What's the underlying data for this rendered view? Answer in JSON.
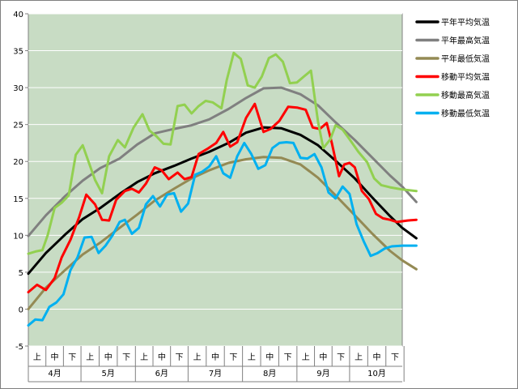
{
  "chart_data": {
    "type": "line",
    "title": "",
    "xlabel": "",
    "ylabel": "",
    "ylim": [
      -5,
      40
    ],
    "yticks": [
      -5,
      0,
      5,
      10,
      15,
      20,
      25,
      30,
      35,
      40
    ],
    "grid": true,
    "plot_background": "#c8dcc4",
    "legend_position": "right",
    "months": [
      "4月",
      "5月",
      "6月",
      "7月",
      "8月",
      "9月",
      "10月"
    ],
    "dekads": [
      "上",
      "中",
      "下"
    ],
    "x_units": "day index from April 1 (0 = 4月1日, 213 = 10月31日)",
    "series": [
      {
        "name": "平年平均気温",
        "color": "#000000",
        "width": 3,
        "points": [
          [
            0,
            4.8
          ],
          [
            10,
            7.6
          ],
          [
            21,
            10.1
          ],
          [
            31,
            12.2
          ],
          [
            41,
            13.7
          ],
          [
            52,
            15.6
          ],
          [
            62,
            17.2
          ],
          [
            72,
            18.4
          ],
          [
            83,
            19.4
          ],
          [
            93,
            20.4
          ],
          [
            103,
            21.3
          ],
          [
            114,
            22.5
          ],
          [
            124,
            23.9
          ],
          [
            134,
            24.6
          ],
          [
            144,
            24.5
          ],
          [
            155,
            23.6
          ],
          [
            165,
            22.2
          ],
          [
            175,
            20.1
          ],
          [
            186,
            17.7
          ],
          [
            196,
            15.1
          ],
          [
            206,
            12.6
          ],
          [
            213,
            11.0
          ],
          [
            221,
            9.6
          ]
        ]
      },
      {
        "name": "平年最高気温",
        "color": "#808080",
        "width": 3,
        "points": [
          [
            0,
            9.9
          ],
          [
            10,
            12.7
          ],
          [
            21,
            15.3
          ],
          [
            31,
            17.4
          ],
          [
            41,
            19.1
          ],
          [
            52,
            20.4
          ],
          [
            62,
            22.3
          ],
          [
            72,
            23.8
          ],
          [
            83,
            24.4
          ],
          [
            93,
            24.9
          ],
          [
            103,
            25.7
          ],
          [
            114,
            27.1
          ],
          [
            124,
            28.6
          ],
          [
            134,
            29.9
          ],
          [
            144,
            30.0
          ],
          [
            155,
            29.1
          ],
          [
            165,
            27.6
          ],
          [
            175,
            25.3
          ],
          [
            186,
            22.9
          ],
          [
            196,
            20.5
          ],
          [
            206,
            18.1
          ],
          [
            213,
            16.6
          ],
          [
            221,
            14.5
          ]
        ]
      },
      {
        "name": "平年最低気温",
        "color": "#948a54",
        "width": 3,
        "points": [
          [
            0,
            0.0
          ],
          [
            10,
            2.9
          ],
          [
            21,
            5.3
          ],
          [
            31,
            7.4
          ],
          [
            41,
            9.0
          ],
          [
            52,
            11.0
          ],
          [
            62,
            12.8
          ],
          [
            72,
            14.7
          ],
          [
            83,
            16.3
          ],
          [
            93,
            17.7
          ],
          [
            103,
            18.8
          ],
          [
            114,
            19.8
          ],
          [
            124,
            20.3
          ],
          [
            134,
            20.6
          ],
          [
            144,
            20.5
          ],
          [
            155,
            19.6
          ],
          [
            165,
            17.8
          ],
          [
            175,
            15.4
          ],
          [
            186,
            12.7
          ],
          [
            196,
            10.2
          ],
          [
            206,
            7.9
          ],
          [
            213,
            6.6
          ],
          [
            221,
            5.4
          ]
        ]
      },
      {
        "name": "移動平均気温",
        "color": "#ff0000",
        "width": 3,
        "points": [
          [
            0,
            2.3
          ],
          [
            5,
            3.3
          ],
          [
            10,
            2.6
          ],
          [
            15,
            4.2
          ],
          [
            19,
            7.0
          ],
          [
            24,
            9.4
          ],
          [
            29,
            12.5
          ],
          [
            33,
            15.5
          ],
          [
            38,
            14.2
          ],
          [
            42,
            12.1
          ],
          [
            46,
            12.0
          ],
          [
            50,
            14.8
          ],
          [
            55,
            16.0
          ],
          [
            59,
            16.3
          ],
          [
            63,
            15.8
          ],
          [
            67,
            17.0
          ],
          [
            72,
            19.2
          ],
          [
            76,
            18.8
          ],
          [
            80,
            17.6
          ],
          [
            85,
            18.5
          ],
          [
            89,
            17.6
          ],
          [
            93,
            17.9
          ],
          [
            97,
            21.0
          ],
          [
            102,
            21.7
          ],
          [
            107,
            22.5
          ],
          [
            111,
            24.0
          ],
          [
            115,
            22.0
          ],
          [
            119,
            22.6
          ],
          [
            124,
            25.9
          ],
          [
            129,
            27.8
          ],
          [
            134,
            24.0
          ],
          [
            138,
            24.4
          ],
          [
            143,
            25.5
          ],
          [
            148,
            27.4
          ],
          [
            153,
            27.3
          ],
          [
            158,
            27.0
          ],
          [
            162,
            24.6
          ],
          [
            166,
            24.4
          ],
          [
            170,
            25.2
          ],
          [
            173,
            22.4
          ],
          [
            177,
            18.0
          ],
          [
            180,
            19.6
          ],
          [
            183,
            19.8
          ],
          [
            186,
            19.2
          ],
          [
            190,
            16.0
          ],
          [
            194,
            14.9
          ],
          [
            198,
            12.9
          ],
          [
            202,
            12.3
          ],
          [
            206,
            12.1
          ],
          [
            210,
            11.8
          ],
          [
            216,
            12.0
          ],
          [
            221,
            12.1
          ]
        ]
      },
      {
        "name": "移動最高気温",
        "color": "#92d050",
        "width": 3,
        "points": [
          [
            0,
            7.5
          ],
          [
            4,
            7.8
          ],
          [
            8,
            8.0
          ],
          [
            11,
            10.0
          ],
          [
            15,
            13.7
          ],
          [
            19,
            14.4
          ],
          [
            23,
            15.4
          ],
          [
            27,
            20.9
          ],
          [
            31,
            22.2
          ],
          [
            35,
            19.5
          ],
          [
            38,
            17.5
          ],
          [
            42,
            15.7
          ],
          [
            46,
            20.7
          ],
          [
            51,
            22.9
          ],
          [
            55,
            21.9
          ],
          [
            60,
            24.6
          ],
          [
            65,
            26.4
          ],
          [
            69,
            24.2
          ],
          [
            73,
            23.4
          ],
          [
            77,
            22.4
          ],
          [
            81,
            22.3
          ],
          [
            85,
            27.5
          ],
          [
            89,
            27.7
          ],
          [
            93,
            26.5
          ],
          [
            97,
            27.5
          ],
          [
            101,
            28.2
          ],
          [
            105,
            28.0
          ],
          [
            110,
            27.2
          ],
          [
            113,
            31.0
          ],
          [
            117,
            34.7
          ],
          [
            121,
            33.9
          ],
          [
            125,
            30.3
          ],
          [
            129,
            30.0
          ],
          [
            133,
            31.5
          ],
          [
            137,
            34.0
          ],
          [
            141,
            34.5
          ],
          [
            145,
            33.5
          ],
          [
            149,
            30.6
          ],
          [
            153,
            30.7
          ],
          [
            157,
            31.5
          ],
          [
            161,
            32.3
          ],
          [
            165,
            25.4
          ],
          [
            168,
            21.8
          ],
          [
            172,
            23.0
          ],
          [
            175,
            24.9
          ],
          [
            179,
            24.3
          ],
          [
            183,
            23.0
          ],
          [
            188,
            21.3
          ],
          [
            193,
            19.9
          ],
          [
            197,
            17.7
          ],
          [
            201,
            16.8
          ],
          [
            206,
            16.5
          ],
          [
            213,
            16.2
          ],
          [
            221,
            16.0
          ]
        ]
      },
      {
        "name": "移動最低気温",
        "color": "#00b0f0",
        "width": 3,
        "points": [
          [
            0,
            -2.2
          ],
          [
            4,
            -1.4
          ],
          [
            8,
            -1.5
          ],
          [
            12,
            0.3
          ],
          [
            16,
            0.9
          ],
          [
            20,
            2.0
          ],
          [
            24,
            5.3
          ],
          [
            28,
            7.0
          ],
          [
            32,
            9.7
          ],
          [
            36,
            9.8
          ],
          [
            40,
            7.6
          ],
          [
            44,
            8.6
          ],
          [
            48,
            10.0
          ],
          [
            52,
            11.8
          ],
          [
            55,
            12.1
          ],
          [
            59,
            10.2
          ],
          [
            63,
            11.0
          ],
          [
            67,
            14.2
          ],
          [
            71,
            15.3
          ],
          [
            75,
            13.9
          ],
          [
            79,
            15.5
          ],
          [
            83,
            15.7
          ],
          [
            87,
            13.2
          ],
          [
            91,
            14.3
          ],
          [
            95,
            18.2
          ],
          [
            99,
            18.6
          ],
          [
            103,
            19.3
          ],
          [
            107,
            20.7
          ],
          [
            111,
            18.4
          ],
          [
            115,
            17.8
          ],
          [
            119,
            20.7
          ],
          [
            123,
            22.5
          ],
          [
            127,
            21.0
          ],
          [
            131,
            19.0
          ],
          [
            135,
            19.5
          ],
          [
            139,
            21.8
          ],
          [
            143,
            22.5
          ],
          [
            147,
            22.6
          ],
          [
            151,
            22.5
          ],
          [
            155,
            20.5
          ],
          [
            159,
            20.4
          ],
          [
            163,
            21.0
          ],
          [
            167,
            19.2
          ],
          [
            171,
            15.8
          ],
          [
            175,
            15.0
          ],
          [
            179,
            16.6
          ],
          [
            183,
            15.6
          ],
          [
            187,
            11.5
          ],
          [
            191,
            9.2
          ],
          [
            195,
            7.2
          ],
          [
            199,
            7.6
          ],
          [
            203,
            8.2
          ],
          [
            207,
            8.5
          ],
          [
            213,
            8.6
          ],
          [
            221,
            8.6
          ]
        ]
      }
    ]
  }
}
